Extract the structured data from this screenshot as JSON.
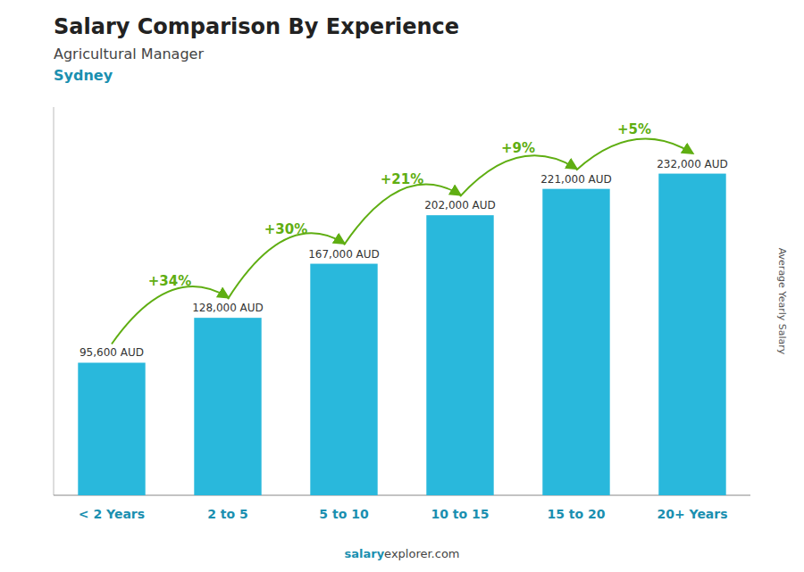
{
  "chart_data": {
    "type": "bar",
    "title": "Salary Comparison By Experience",
    "subtitle": [
      "Agricultural Manager",
      "Sydney"
    ],
    "ylabel": "Average Yearly Salary",
    "categories": [
      "< 2 Years",
      "2 to 5",
      "5 to 10",
      "10 to 15",
      "15 to 20",
      "20+ Years"
    ],
    "values": [
      95600,
      128000,
      167000,
      202000,
      221000,
      232000
    ],
    "value_labels": [
      "95,600 AUD",
      "128,000 AUD",
      "167,000 AUD",
      "202,000 AUD",
      "221,000 AUD",
      "232,000 AUD"
    ],
    "annotations": [
      {
        "text": "+34%",
        "color": "#5fae12"
      },
      {
        "text": "+30%",
        "color": "#5fae12"
      },
      {
        "text": "+21%",
        "color": "#5fae12"
      },
      {
        "text": "+9%",
        "color": "#5fae12"
      },
      {
        "text": "+5%",
        "color": "#5fae12"
      }
    ],
    "footer": [
      "salary",
      "explorer.com"
    ],
    "color": "#29B8DC",
    "ylim": [
      0,
      280000
    ],
    "grid": false,
    "data_labels": true,
    "tick_labels": "x"
  }
}
